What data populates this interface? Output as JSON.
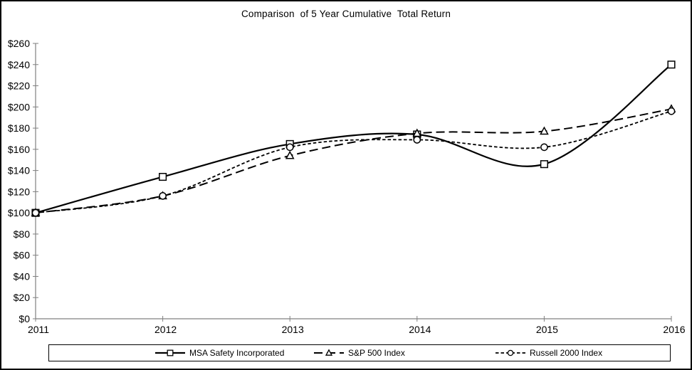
{
  "window": {
    "background": "#ffffff",
    "border_color": "#000000"
  },
  "chart_data": {
    "type": "line",
    "title": "Comparison  of 5 Year Cumulative  Total Return",
    "categories": [
      "2011",
      "2012",
      "2013",
      "2014",
      "2015",
      "2016"
    ],
    "series": [
      {
        "name": "MSA Safety Incorporated",
        "values": [
          100,
          134,
          165,
          174,
          146,
          240
        ],
        "marker": "square",
        "line_style": "solid"
      },
      {
        "name": "S&P 500 Index",
        "values": [
          100,
          116,
          154,
          175,
          177,
          198
        ],
        "marker": "triangle",
        "line_style": "long-dash"
      },
      {
        "name": "Russell 2000 Index",
        "values": [
          100,
          116,
          162,
          169,
          162,
          196
        ],
        "marker": "circle",
        "line_style": "short-dash"
      }
    ],
    "xlabel": "",
    "ylabel": "",
    "ylim": [
      0,
      260
    ],
    "ytick_step": 20,
    "y_tick_labels": [
      "$0",
      "$20",
      "$40",
      "$60",
      "$80",
      "$100",
      "$120",
      "$140",
      "$160",
      "$180",
      "$200",
      "$220",
      "$240",
      "$260"
    ],
    "grid": false,
    "smooth": true,
    "legend_position": "bottom",
    "line_color": "#000000",
    "marker_fill": "#ffffff",
    "axis_color": "#808080",
    "text_color": "#000000"
  }
}
